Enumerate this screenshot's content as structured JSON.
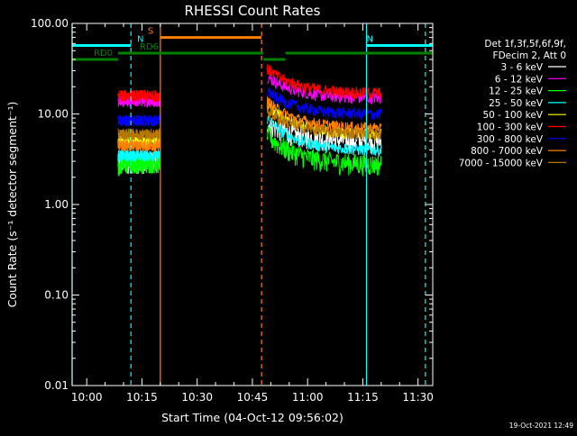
{
  "chart_data": {
    "type": "line",
    "title": "RHESSI Count Rates",
    "xlabel": "Start Time (04-Oct-12 09:56:02)",
    "ylabel": "Count Rate (s⁻¹ detector segment⁻¹)",
    "y_scale": "log",
    "ylim": [
      0.01,
      100.0
    ],
    "xlim": [
      "09:56:02",
      "11:34:00"
    ],
    "x_ticks": [
      "10:00",
      "10:15",
      "10:30",
      "10:45",
      "11:00",
      "11:15",
      "11:30"
    ],
    "y_ticks": [
      "0.01",
      "0.10",
      "1.00",
      "10.00",
      "100.00"
    ],
    "legend": {
      "title_lines": [
        "Det 1f,3f,5f,6f,9f,",
        "FDecim 2, Att 0"
      ],
      "placement": "right"
    },
    "footer": "19-Oct-2021 12:49",
    "series": [
      {
        "name": "3 - 6 keV",
        "color": "#ffffff",
        "seg1": [
          3.0,
          3.0
        ],
        "seg2": [
          8.0,
          5.0
        ]
      },
      {
        "name": "6 - 12 keV",
        "color": "#ff00ff",
        "seg1": [
          14.0,
          14.0
        ],
        "seg2": [
          26.0,
          15.0
        ]
      },
      {
        "name": "12 - 25 keV",
        "color": "#00ff00",
        "seg1": [
          2.8,
          3.0
        ],
        "seg2": [
          6.0,
          2.8
        ]
      },
      {
        "name": "25 - 50 keV",
        "color": "#00ffff",
        "seg1": [
          3.5,
          3.5
        ],
        "seg2": [
          9.0,
          4.0
        ]
      },
      {
        "name": "50 - 100 keV",
        "color": "#ffff00",
        "seg1": [
          5.0,
          5.0
        ],
        "seg2": [
          13.0,
          6.0
        ]
      },
      {
        "name": "100 - 300 keV",
        "color": "#ff0000",
        "seg1": [
          16.0,
          16.0
        ],
        "seg2": [
          32.0,
          17.0
        ]
      },
      {
        "name": "300 - 800 keV",
        "color": "#0000ff",
        "seg1": [
          8.5,
          8.5
        ],
        "seg2": [
          18.0,
          10.0
        ]
      },
      {
        "name": "800 - 7000 keV",
        "color": "#ff8000",
        "seg1": [
          4.5,
          4.5
        ],
        "seg2": [
          14.0,
          7.0
        ]
      },
      {
        "name": "7000 - 15000 keV",
        "color": "#b87800",
        "seg1": [
          6.0,
          6.0
        ],
        "seg2": [
          11.0,
          6.0
        ]
      }
    ],
    "segments": [
      {
        "start": "10:08:30",
        "end": "10:20:00"
      },
      {
        "start": "10:49:00",
        "end": "11:20:00"
      }
    ],
    "annotations": [
      {
        "label": "S",
        "color": "#ff8000",
        "start": "10:20:00",
        "end": "10:47:30",
        "y": 70
      },
      {
        "label": "N",
        "color": "#00ffff",
        "start": "09:56:02",
        "end": "10:12:00",
        "y": 57
      },
      {
        "label": "N",
        "color": "#00ffff",
        "start": "11:16:00",
        "end": "11:34:00",
        "y": 57
      },
      {
        "label": "RD0",
        "color": "#008000",
        "start": "09:56:02",
        "end": "10:08:30",
        "y": 40
      },
      {
        "label": "RD6",
        "color": "#008000",
        "start": "10:08:30",
        "end": "10:48:00",
        "y": 47
      },
      {
        "label": "",
        "color": "#008000",
        "start": "10:48:00",
        "end": "10:54:00",
        "y": 40
      },
      {
        "label": "",
        "color": "#008000",
        "start": "10:54:00",
        "end": "11:34:00",
        "y": 47
      }
    ],
    "vlines": [
      {
        "time": "09:56:02",
        "color": "#00ffff",
        "style": "solid"
      },
      {
        "time": "10:12:00",
        "color": "#00ffff",
        "style": "dashed"
      },
      {
        "time": "10:20:00",
        "color": "#ff8000",
        "style": "solid"
      },
      {
        "time": "10:47:30",
        "color": "#ff8000",
        "style": "dashed"
      },
      {
        "time": "11:16:00",
        "color": "#00ffff",
        "style": "solid"
      },
      {
        "time": "11:32:00",
        "color": "#00ffff",
        "style": "dashed"
      }
    ]
  }
}
